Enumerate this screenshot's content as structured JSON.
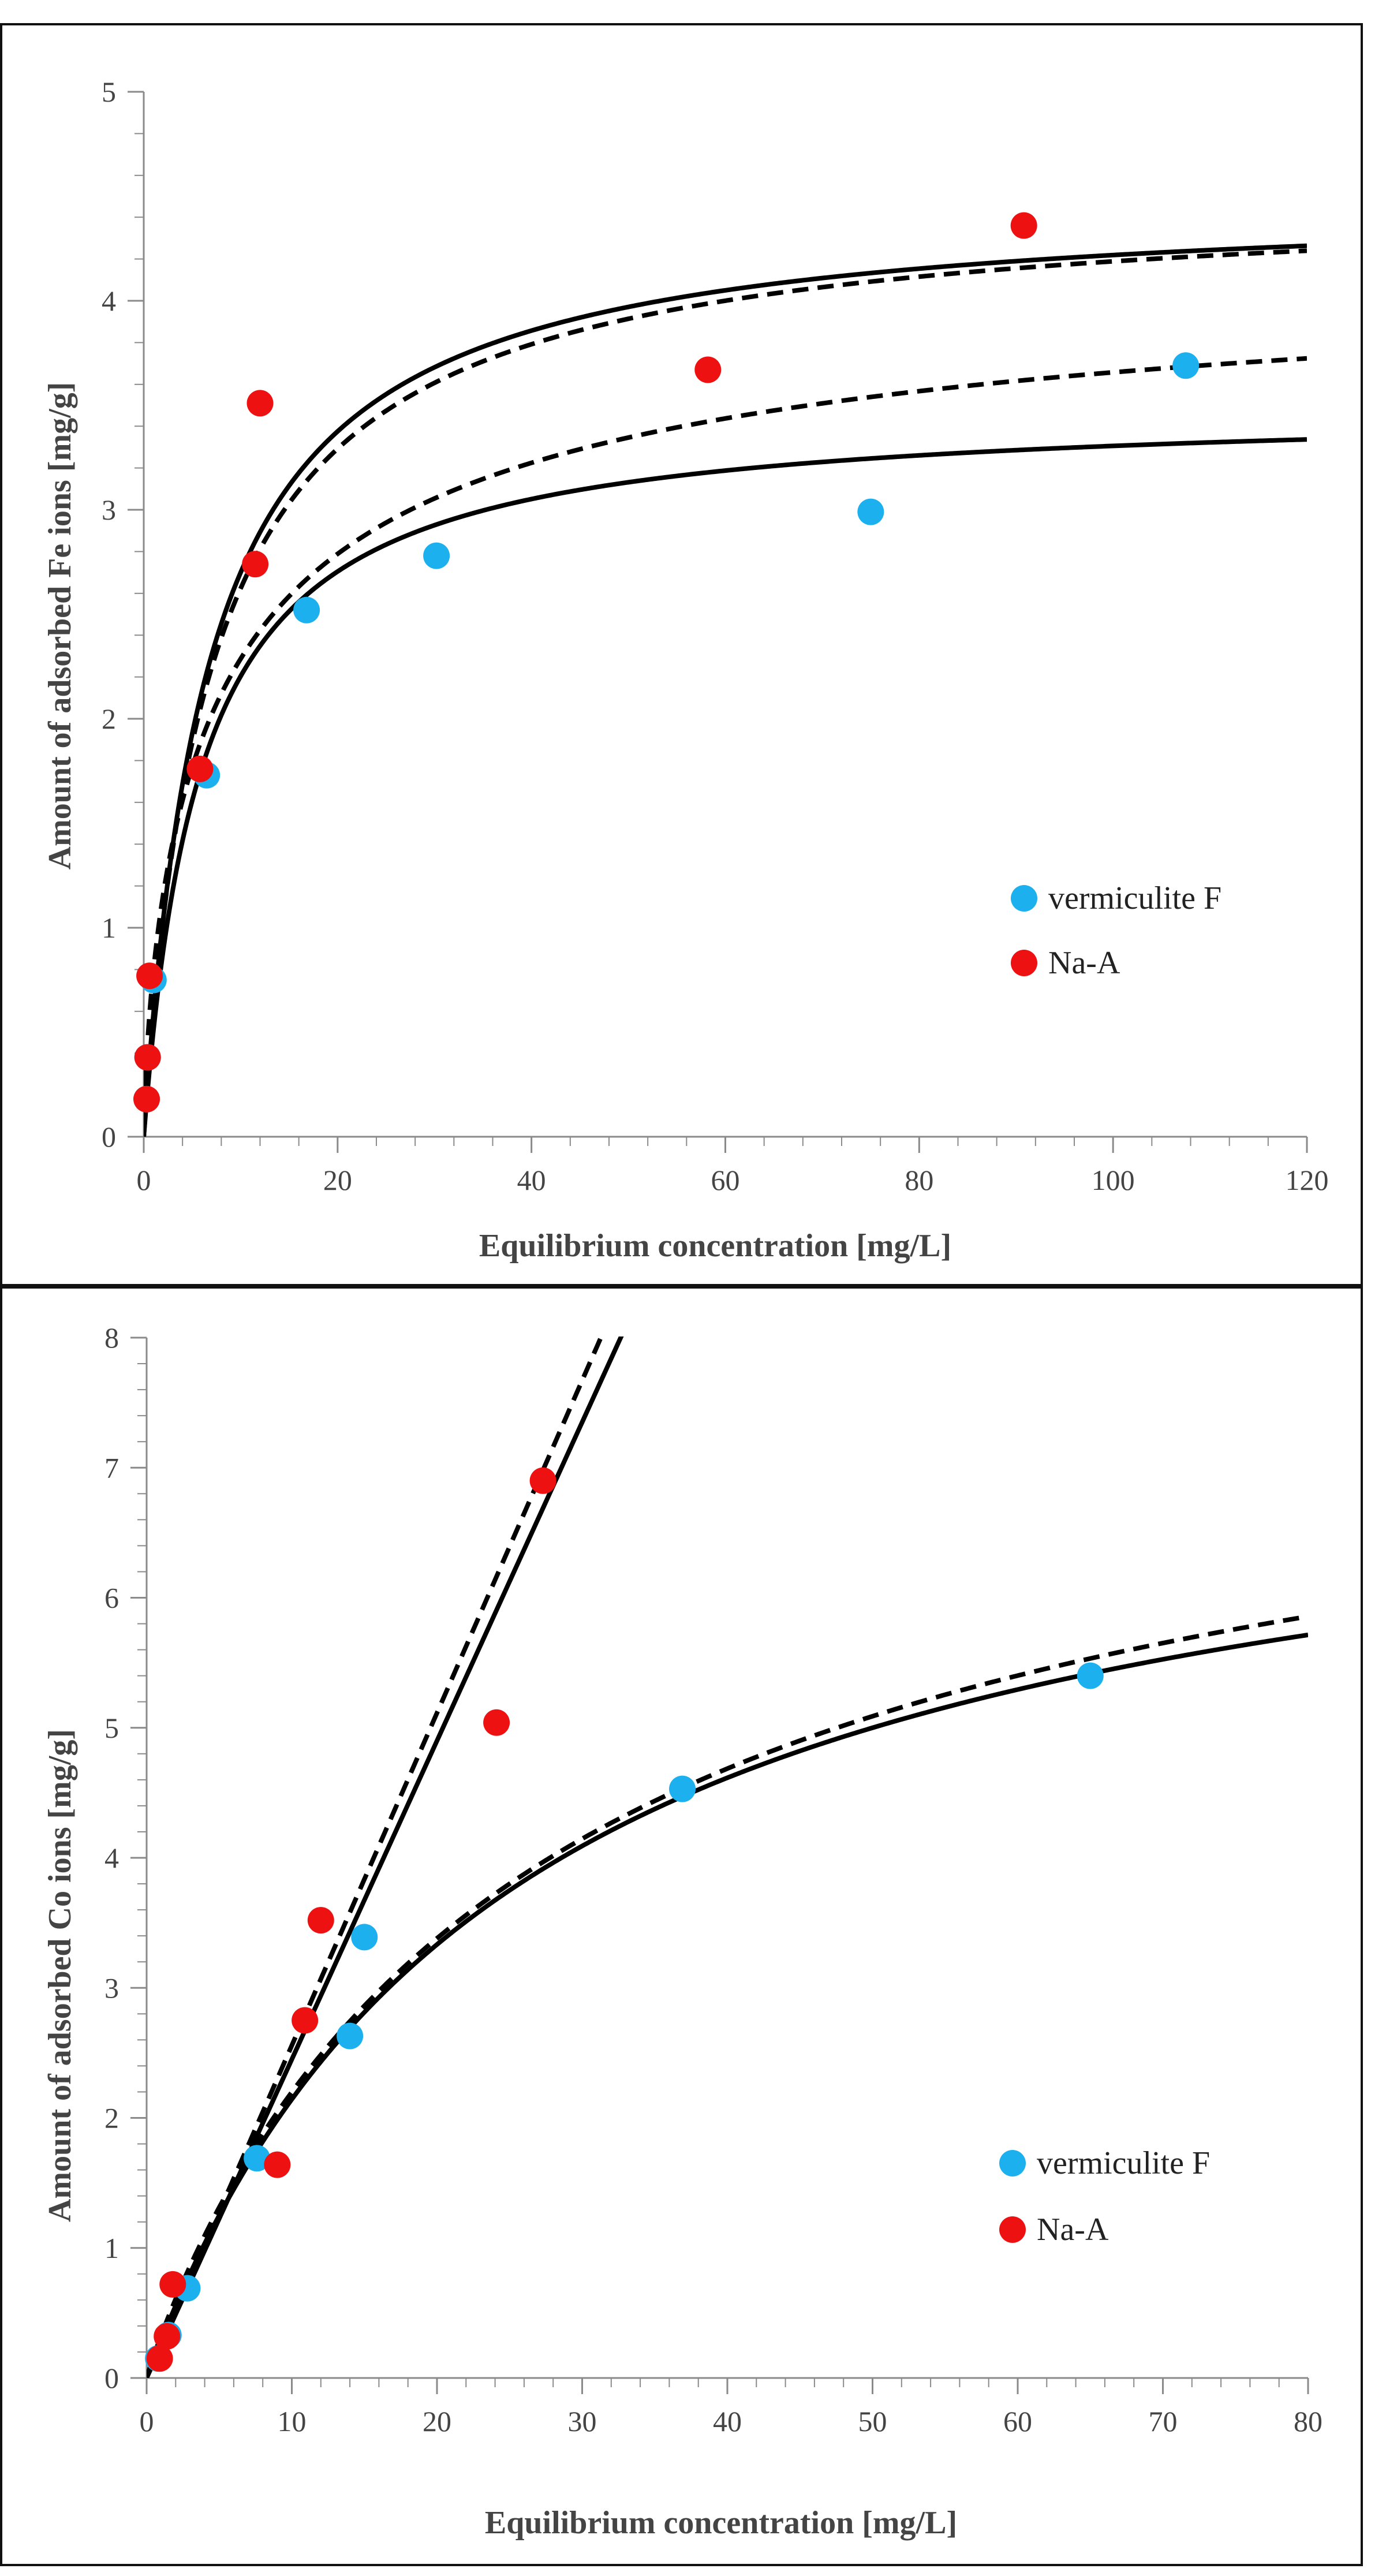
{
  "chart_data": [
    {
      "type": "scatter",
      "panel": "top",
      "title": "",
      "xlabel": "Equilibrium  concentration [mg/L]",
      "ylabel": "Amount of adsorbed Fe ions [mg/g]",
      "xlim": [
        0,
        120
      ],
      "ylim": [
        0,
        5
      ],
      "xticks": [
        0,
        20,
        40,
        60,
        80,
        100,
        120
      ],
      "yticks": [
        0,
        1,
        2,
        3,
        4,
        5
      ],
      "legend_position": "center-right",
      "series": [
        {
          "name": "vermiculite F",
          "color": "#1cb0ee",
          "points": [
            [
              0.3,
              0.18
            ],
            [
              0.4,
              0.38
            ],
            [
              1.0,
              0.75
            ],
            [
              6.5,
              1.73
            ],
            [
              16.8,
              2.52
            ],
            [
              30.2,
              2.78
            ],
            [
              75.0,
              2.99
            ],
            [
              107.5,
              3.69
            ]
          ]
        },
        {
          "name": "Na-A",
          "color": "#ee1111",
          "points": [
            [
              0.3,
              0.18
            ],
            [
              0.4,
              0.38
            ],
            [
              0.6,
              0.77
            ],
            [
              5.8,
              1.76
            ],
            [
              11.5,
              2.74
            ],
            [
              12.0,
              3.51
            ],
            [
              58.2,
              3.67
            ],
            [
              90.8,
              4.36
            ]
          ]
        }
      ],
      "fit_curves": [
        {
          "name": "Na-A fit (solid)",
          "style": "solid",
          "model": "langmuir",
          "qmax": 4.5,
          "K": 0.15
        },
        {
          "name": "Na-A fit (dashed)",
          "style": "dashed",
          "model": "sips",
          "qmax": 4.53,
          "K": 0.14,
          "n": 0.95
        },
        {
          "name": "vermiculite F fit (solid)",
          "style": "solid",
          "model": "langmuir",
          "qmax": 3.5,
          "K": 0.17
        },
        {
          "name": "vermiculite F fit (dashed)",
          "style": "dashed",
          "model": "sips",
          "qmax": 4.3,
          "K": 0.12,
          "n": 0.7
        }
      ]
    },
    {
      "type": "scatter",
      "panel": "bottom",
      "title": "",
      "xlabel": "Equilibrium  concentration [mg/L]",
      "ylabel": "Amount of adsorbed Co ions [mg/g]",
      "xlim": [
        0,
        80
      ],
      "ylim": [
        0,
        8
      ],
      "xticks": [
        0,
        10,
        20,
        30,
        40,
        50,
        60,
        70,
        80
      ],
      "yticks": [
        0,
        1,
        2,
        3,
        4,
        5,
        6,
        7,
        8
      ],
      "legend_position": "bottom-right",
      "series": [
        {
          "name": "vermiculite F",
          "color": "#1cb0ee",
          "points": [
            [
              0.8,
              0.15
            ],
            [
              1.5,
              0.33
            ],
            [
              2.8,
              0.69
            ],
            [
              7.6,
              1.69
            ],
            [
              14.0,
              2.63
            ],
            [
              15.0,
              3.39
            ],
            [
              36.9,
              4.53
            ],
            [
              65.0,
              5.4
            ]
          ]
        },
        {
          "name": "Na-A",
          "color": "#ee1111",
          "points": [
            [
              0.9,
              0.15
            ],
            [
              1.4,
              0.32
            ],
            [
              1.8,
              0.72
            ],
            [
              9.0,
              1.64
            ],
            [
              10.9,
              2.75
            ],
            [
              12.0,
              3.52
            ],
            [
              24.1,
              5.04
            ],
            [
              27.3,
              6.9
            ]
          ]
        }
      ],
      "fit_curves": [
        {
          "name": "Na-A fit (solid)",
          "style": "solid",
          "model": "linear",
          "slope": 0.245
        },
        {
          "name": "Na-A fit (dashed)",
          "style": "dashed",
          "model": "linear",
          "slope": 0.2557
        },
        {
          "name": "vermiculite F fit (solid)",
          "style": "solid",
          "model": "langmuir",
          "qmax": 7.5,
          "K": 0.04
        },
        {
          "name": "vermiculite F fit (dashed)",
          "style": "dashed",
          "model": "sips",
          "qmax": 8.0,
          "K": 0.036,
          "n": 0.95
        }
      ]
    }
  ]
}
